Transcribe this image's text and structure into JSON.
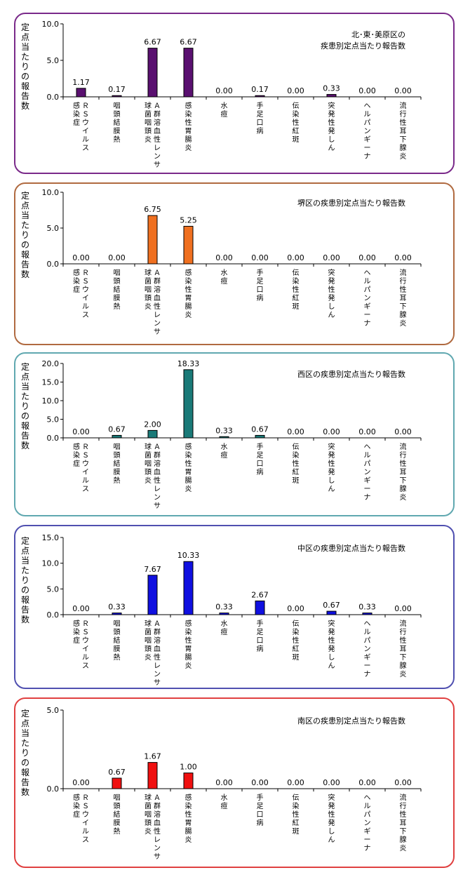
{
  "chart_data": [
    {
      "type": "bar",
      "title": [
        "北･東･美原区の",
        "疾患別定点当たり報告数"
      ],
      "ylabel": "定点当たりの報告数",
      "color": "#5a1070",
      "border_color": "#7a2a8a",
      "categories": [
        {
          "label": "ＲＳウイルス感染症",
          "lines": [
            "ＲＳウイルス",
            "感染症"
          ]
        },
        {
          "label": "咽頭結膜熱",
          "lines": [
            "咽頭結膜熱"
          ]
        },
        {
          "label": "Ａ群溶血性レンサ球菌咽頭炎",
          "lines": [
            "Ａ群溶血性レンサ",
            "球菌咽頭炎"
          ]
        },
        {
          "label": "感染性胃腸炎",
          "lines": [
            "感染性胃腸炎"
          ]
        },
        {
          "label": "水痘",
          "lines": [
            "水痘"
          ]
        },
        {
          "label": "手足口病",
          "lines": [
            "手足口病"
          ]
        },
        {
          "label": "伝染性紅斑",
          "lines": [
            "伝染性紅斑"
          ]
        },
        {
          "label": "突発性発しん",
          "lines": [
            "突発性発しん"
          ]
        },
        {
          "label": "ヘルパンギーナ",
          "lines": [
            "ヘルパンギーナ"
          ]
        },
        {
          "label": "流行性耳下腺炎",
          "lines": [
            "流行性耳下腺炎"
          ]
        }
      ],
      "values": [
        1.17,
        0.17,
        6.67,
        6.67,
        0.0,
        0.17,
        0.0,
        0.33,
        0.0,
        0.0
      ],
      "value_labels": [
        "1.17",
        "0.17",
        "6.67",
        "6.67",
        "0.00",
        "0.17",
        "0.00",
        "0.33",
        "0.00",
        "0.00"
      ],
      "ylim": [
        0,
        10
      ],
      "yticks": [
        {
          "v": 0,
          "t": "0.0"
        },
        {
          "v": 5,
          "t": "5.0"
        },
        {
          "v": 10,
          "t": "10.0"
        }
      ]
    },
    {
      "type": "bar",
      "title": [
        "堺区の疾患別定点当たり報告数"
      ],
      "ylabel": "定点当たりの報告数",
      "color": "#f07020",
      "border_color": "#b06a40",
      "categories": [
        {
          "label": "ＲＳウイルス感染症",
          "lines": [
            "ＲＳウイルス",
            "感染症"
          ]
        },
        {
          "label": "咽頭結膜熱",
          "lines": [
            "咽頭結膜熱"
          ]
        },
        {
          "label": "Ａ群溶血性レンサ球菌咽頭炎",
          "lines": [
            "Ａ群溶血性レンサ",
            "球菌咽頭炎"
          ]
        },
        {
          "label": "感染性胃腸炎",
          "lines": [
            "感染性胃腸炎"
          ]
        },
        {
          "label": "水痘",
          "lines": [
            "水痘"
          ]
        },
        {
          "label": "手足口病",
          "lines": [
            "手足口病"
          ]
        },
        {
          "label": "伝染性紅斑",
          "lines": [
            "伝染性紅斑"
          ]
        },
        {
          "label": "突発性発しん",
          "lines": [
            "突発性発しん"
          ]
        },
        {
          "label": "ヘルパンギーナ",
          "lines": [
            "ヘルパンギーナ"
          ]
        },
        {
          "label": "流行性耳下腺炎",
          "lines": [
            "流行性耳下腺炎"
          ]
        }
      ],
      "values": [
        0.0,
        0.0,
        6.75,
        5.25,
        0.0,
        0.0,
        0.0,
        0.0,
        0.0,
        0.0
      ],
      "value_labels": [
        "0.00",
        "0.00",
        "6.75",
        "5.25",
        "0.00",
        "0.00",
        "0.00",
        "0.00",
        "0.00",
        "0.00"
      ],
      "ylim": [
        0,
        10
      ],
      "yticks": [
        {
          "v": 0,
          "t": "0.0"
        },
        {
          "v": 5,
          "t": "5.0"
        },
        {
          "v": 10,
          "t": "10.0"
        }
      ]
    },
    {
      "type": "bar",
      "title": [
        "西区の疾患別定点当たり報告数"
      ],
      "ylabel": "定点当たりの報告数",
      "color": "#1a7a78",
      "border_color": "#60a8b0",
      "categories": [
        {
          "label": "ＲＳウイルス感染症",
          "lines": [
            "ＲＳウイルス",
            "感染症"
          ]
        },
        {
          "label": "咽頭結膜熱",
          "lines": [
            "咽頭結膜熱"
          ]
        },
        {
          "label": "Ａ群溶血性レンサ球菌咽頭炎",
          "lines": [
            "Ａ群溶血性レンサ",
            "球菌咽頭炎"
          ]
        },
        {
          "label": "感染性胃腸炎",
          "lines": [
            "感染性胃腸炎"
          ]
        },
        {
          "label": "水痘",
          "lines": [
            "水痘"
          ]
        },
        {
          "label": "手足口病",
          "lines": [
            "手足口病"
          ]
        },
        {
          "label": "伝染性紅斑",
          "lines": [
            "伝染性紅斑"
          ]
        },
        {
          "label": "突発性発しん",
          "lines": [
            "突発性発しん"
          ]
        },
        {
          "label": "ヘルパンギーナ",
          "lines": [
            "ヘルパンギーナ"
          ]
        },
        {
          "label": "流行性耳下腺炎",
          "lines": [
            "流行性耳下腺炎"
          ]
        }
      ],
      "values": [
        0.0,
        0.67,
        2.0,
        18.33,
        0.33,
        0.67,
        0.0,
        0.0,
        0.0,
        0.0
      ],
      "value_labels": [
        "0.00",
        "0.67",
        "2.00",
        "18.33",
        "0.33",
        "0.67",
        "0.00",
        "0.00",
        "0.00",
        "0.00"
      ],
      "ylim": [
        0,
        20
      ],
      "yticks": [
        {
          "v": 0,
          "t": "0.0"
        },
        {
          "v": 5,
          "t": "5.0"
        },
        {
          "v": 10,
          "t": "10.0"
        },
        {
          "v": 15,
          "t": "15.0"
        },
        {
          "v": 20,
          "t": "20.0"
        }
      ]
    },
    {
      "type": "bar",
      "title": [
        "中区の疾患別定点当たり報告数"
      ],
      "ylabel": "定点当たりの報告数",
      "color": "#1010e0",
      "border_color": "#5050b0",
      "categories": [
        {
          "label": "ＲＳウイルス感染症",
          "lines": [
            "ＲＳウイルス",
            "感染症"
          ]
        },
        {
          "label": "咽頭結膜熱",
          "lines": [
            "咽頭結膜熱"
          ]
        },
        {
          "label": "Ａ群溶血性レンサ球菌咽頭炎",
          "lines": [
            "Ａ群溶血性レンサ",
            "球菌咽頭炎"
          ]
        },
        {
          "label": "感染性胃腸炎",
          "lines": [
            "感染性胃腸炎"
          ]
        },
        {
          "label": "水痘",
          "lines": [
            "水痘"
          ]
        },
        {
          "label": "手足口病",
          "lines": [
            "手足口病"
          ]
        },
        {
          "label": "伝染性紅斑",
          "lines": [
            "伝染性紅斑"
          ]
        },
        {
          "label": "突発性発しん",
          "lines": [
            "突発性発しん"
          ]
        },
        {
          "label": "ヘルパンギーナ",
          "lines": [
            "ヘルパンギーナ"
          ]
        },
        {
          "label": "流行性耳下腺炎",
          "lines": [
            "流行性耳下腺炎"
          ]
        }
      ],
      "values": [
        0.0,
        0.33,
        7.67,
        10.33,
        0.33,
        2.67,
        0.0,
        0.67,
        0.33,
        0.0
      ],
      "value_labels": [
        "0.00",
        "0.33",
        "7.67",
        "10.33",
        "0.33",
        "2.67",
        "0.00",
        "0.67",
        "0.33",
        "0.00"
      ],
      "ylim": [
        0,
        15
      ],
      "yticks": [
        {
          "v": 0,
          "t": "0.0"
        },
        {
          "v": 5,
          "t": "5.0"
        },
        {
          "v": 10,
          "t": "10.0"
        },
        {
          "v": 15,
          "t": "15.0"
        }
      ]
    },
    {
      "type": "bar",
      "title": [
        "南区の疾患別定点当たり報告数"
      ],
      "ylabel": "定点当たりの報告数",
      "color": "#f01010",
      "border_color": "#e04040",
      "categories": [
        {
          "label": "ＲＳウイルス感染症",
          "lines": [
            "ＲＳウイルス",
            "感染症"
          ]
        },
        {
          "label": "咽頭結膜熱",
          "lines": [
            "咽頭結膜熱"
          ]
        },
        {
          "label": "Ａ群溶血性レンサ球菌咽頭炎",
          "lines": [
            "Ａ群溶血性レンサ",
            "球菌咽頭炎"
          ]
        },
        {
          "label": "感染性胃腸炎",
          "lines": [
            "感染性胃腸炎"
          ]
        },
        {
          "label": "水痘",
          "lines": [
            "水痘"
          ]
        },
        {
          "label": "手足口病",
          "lines": [
            "手足口病"
          ]
        },
        {
          "label": "伝染性紅斑",
          "lines": [
            "伝染性紅斑"
          ]
        },
        {
          "label": "突発性発しん",
          "lines": [
            "突発性発しん"
          ]
        },
        {
          "label": "ヘルパンギーナ",
          "lines": [
            "ヘルパンギーナ"
          ]
        },
        {
          "label": "流行性耳下腺炎",
          "lines": [
            "流行性耳下腺炎"
          ]
        }
      ],
      "values": [
        0.0,
        0.67,
        1.67,
        1.0,
        0.0,
        0.0,
        0.0,
        0.0,
        0.0,
        0.0
      ],
      "value_labels": [
        "0.00",
        "0.67",
        "1.67",
        "1.00",
        "0.00",
        "0.00",
        "0.00",
        "0.00",
        "0.00",
        "0.00"
      ],
      "ylim": [
        0,
        5
      ],
      "yticks": [
        {
          "v": 0,
          "t": "0.0"
        },
        {
          "v": 5,
          "t": "5.0"
        }
      ]
    }
  ]
}
